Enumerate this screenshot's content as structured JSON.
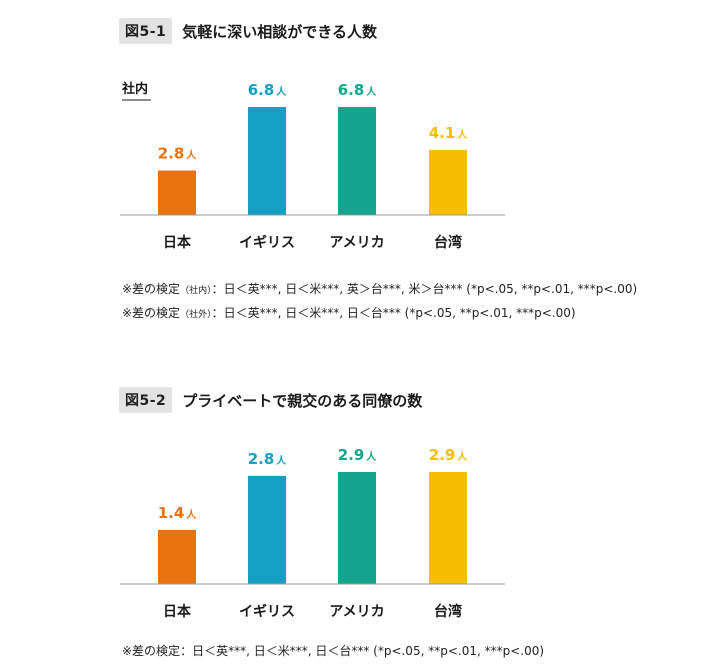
{
  "figures": [
    {
      "badge": "図5-1",
      "title": "気軽に深い相談ができる人数",
      "subtitle": "社内",
      "unit": "人",
      "notes": [
        {
          "prefix": "※差の検定",
          "tag": "（社内）",
          "body": "：日＜英***, 日＜米***, 英＞台***, 米＞台*** (*p<.05, **p<.01, ***p<.00)"
        },
        {
          "prefix": "※差の検定",
          "tag": "（社外）",
          "body": "：日＜英***, 日＜米***, 日＜台*** (*p<.05, **p<.01, ***p<.00)"
        }
      ]
    },
    {
      "badge": "図5-2",
      "title": "プライベートで親交のある同僚の数",
      "subtitle": "",
      "unit": "人",
      "notes": [
        {
          "prefix": "※差の検定",
          "tag": "",
          "body": "：日＜英***, 日＜米***, 日＜台*** (*p<.05, **p<.01, ***p<.00)"
        }
      ]
    }
  ],
  "colors": {
    "japan": "#e8720c",
    "uk": "#149fc4",
    "us": "#14a58e",
    "taiwan": "#f7bd00",
    "axis": "#999999"
  },
  "chart_data": [
    {
      "type": "bar",
      "title": "図5-1 気軽に深い相談ができる人数",
      "subtitle": "社内",
      "categories": [
        "日本",
        "イギリス",
        "アメリカ",
        "台湾"
      ],
      "values": [
        2.8,
        6.8,
        6.8,
        4.1
      ],
      "value_labels": [
        "2.8",
        "6.8",
        "6.8",
        "4.1"
      ],
      "unit": "人",
      "xlabel": "",
      "ylabel": "",
      "ylim": [
        0,
        6.8
      ]
    },
    {
      "type": "bar",
      "title": "図5-2 プライベートで親交のある同僚の数",
      "categories": [
        "日本",
        "イギリス",
        "アメリカ",
        "台湾"
      ],
      "values": [
        1.4,
        2.8,
        2.9,
        2.9
      ],
      "value_labels": [
        "1.4",
        "2.8",
        "2.9",
        "2.9"
      ],
      "unit": "人",
      "xlabel": "",
      "ylabel": "",
      "ylim": [
        0,
        2.9
      ]
    }
  ]
}
